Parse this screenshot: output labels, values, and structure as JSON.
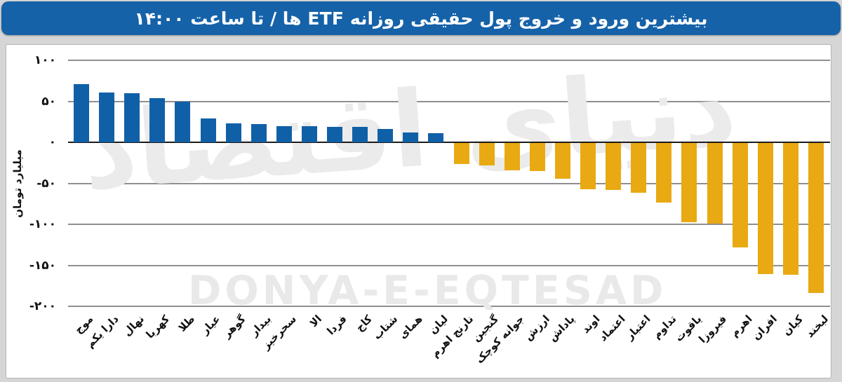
{
  "banner": {
    "title": "بیشترین ورود و خروج پول حقیقی روزانه ETF ها / تا ساعت ۱۴:۰۰",
    "bg_color": "#1562a9",
    "text_color": "#ffffff"
  },
  "watermark": {
    "persian": "دنیای اقتصاد",
    "latin": "DONYA-E-EQTESAD"
  },
  "chart_data": {
    "type": "bar",
    "title": "بیشترین ورود و خروج پول حقیقی روزانه ETF ها / تا ساعت ۱۴:۰۰",
    "xlabel": "",
    "ylabel": "میلیارد تومان",
    "ylim": [
      -200,
      100
    ],
    "grid": true,
    "legend": "none",
    "ytick_values": [
      100,
      50,
      0,
      -50,
      -100,
      -150,
      -200
    ],
    "ytick_labels": [
      "۱۰۰",
      "۵۰",
      "۰",
      "-۵۰",
      "-۱۰۰",
      "-۱۵۰",
      "-۲۰۰"
    ],
    "positive_color": "#1060a8",
    "negative_color": "#e9a912",
    "categories": [
      "موج",
      "دارا یکم",
      "نهال",
      "کهربا",
      "طلا",
      "عیار",
      "گوهر",
      "بیدار",
      "سحرخیز",
      "الا",
      "فردا",
      "کاج",
      "شتاب",
      "همای",
      "لیان",
      "نارنج اهرم",
      "گنجین",
      "جوانه کوچک",
      "ارزش",
      "پاداش",
      "اوند",
      "اعتماد",
      "اعتبار",
      "تداوم",
      "یاقوت",
      "فیروزا",
      "اهرم",
      "افران",
      "کیان",
      "لبخند"
    ],
    "values": [
      71,
      61,
      60,
      54,
      50,
      29,
      23,
      22,
      20,
      20,
      19,
      19,
      16,
      12,
      11,
      -26,
      -27,
      -33,
      -34,
      -44,
      -56,
      -57,
      -61,
      -73,
      -97,
      -98,
      -127,
      -160,
      -161,
      -183
    ]
  }
}
